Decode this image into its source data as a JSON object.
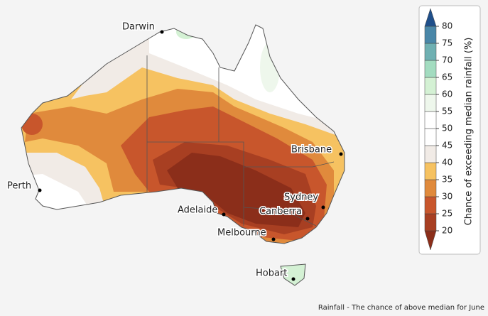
{
  "cities": [
    {
      "name": "Darwin"
    },
    {
      "name": "Brisbane"
    },
    {
      "name": "Perth"
    },
    {
      "name": "Adelaide"
    },
    {
      "name": "Sydney"
    },
    {
      "name": "Canberra"
    },
    {
      "name": "Melbourne"
    },
    {
      "name": "Hobart"
    }
  ],
  "legend": {
    "title": "Chance of exceeding median rainfall (%)",
    "ticks": [
      20,
      25,
      30,
      35,
      40,
      45,
      50,
      55,
      60,
      65,
      70,
      75,
      80
    ],
    "colors": [
      "#8b2e1a",
      "#a83f22",
      "#c8562c",
      "#e08a3c",
      "#f6c261",
      "#f1ebe6",
      "#ffffff",
      "#ffffff",
      "#eef7ec",
      "#d4f1d4",
      "#a3dcc0",
      "#6fb0b2",
      "#4a87a8",
      "#1f4f8a"
    ]
  },
  "caption": "Rainfall - The chance of above median for June"
}
